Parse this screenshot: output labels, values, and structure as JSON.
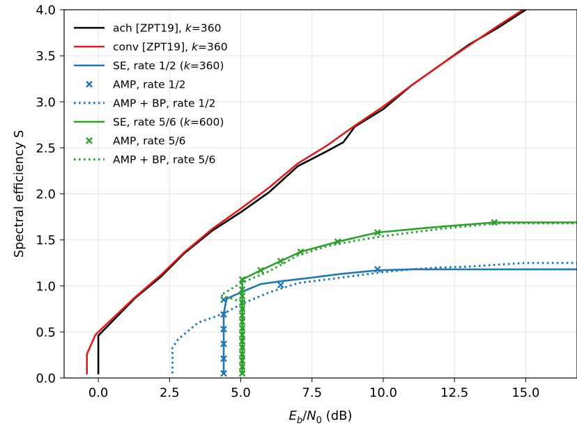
{
  "chart_data": {
    "type": "line",
    "xlabel": "E_b/N_0 (dB)",
    "ylabel": "Spectral efficiency S",
    "xlim": [
      -1.2,
      16.8
    ],
    "ylim": [
      0.0,
      4.0
    ],
    "xticks": [
      0.0,
      2.5,
      5.0,
      7.5,
      10.0,
      12.5,
      15.0
    ],
    "xtick_labels": [
      "0.0",
      "2.5",
      "5.0",
      "7.5",
      "10.0",
      "12.5",
      "15.0"
    ],
    "yticks": [
      0.0,
      0.5,
      1.0,
      1.5,
      2.0,
      2.5,
      3.0,
      3.5,
      4.0
    ],
    "ytick_labels": [
      "0.0",
      "0.5",
      "1.0",
      "1.5",
      "2.0",
      "2.5",
      "3.0",
      "3.5",
      "4.0"
    ],
    "grid": true,
    "legend_position": "top-left",
    "colors": {
      "black": "#000000",
      "red": "#e31a1c",
      "blue": "#1f77b4",
      "green": "#2ca02c"
    },
    "series": [
      {
        "name": "ach [ZPT19], k=360",
        "legend_label": "ach [ZPT19], k=360",
        "legend_parts": [
          {
            "t": "ach [ZPT19], "
          },
          {
            "t": "k",
            "i": true
          },
          {
            "t": "=360"
          }
        ],
        "style": "solid",
        "color": "#000000",
        "x": [
          0.0,
          0.0,
          1.3,
          2.2,
          3.0,
          4.0,
          5.0,
          6.0,
          7.0,
          8.0,
          8.6,
          9.0,
          10.0,
          11.0,
          12.0,
          13.0,
          14.0,
          15.0,
          16.8
        ],
        "y": [
          0.04,
          0.46,
          0.87,
          1.1,
          1.35,
          1.6,
          1.8,
          2.02,
          2.3,
          2.46,
          2.56,
          2.73,
          2.92,
          3.18,
          3.4,
          3.62,
          3.8,
          4.0,
          4.35
        ]
      },
      {
        "name": "conv [ZPT19], k=360",
        "legend_label": "conv [ZPT19], k=360",
        "legend_parts": [
          {
            "t": "conv [ZPT19], "
          },
          {
            "t": "k",
            "i": true
          },
          {
            "t": "=360"
          }
        ],
        "style": "solid",
        "color": "#e31a1c",
        "x": [
          -0.4,
          -0.4,
          -0.1,
          1.3,
          2.2,
          3.0,
          4.0,
          5.0,
          6.0,
          7.0,
          8.0,
          9.0,
          10.0,
          11.0,
          12.0,
          13.0,
          14.0,
          15.0,
          16.8
        ],
        "y": [
          0.04,
          0.26,
          0.47,
          0.88,
          1.12,
          1.36,
          1.62,
          1.84,
          2.07,
          2.33,
          2.52,
          2.74,
          2.95,
          3.18,
          3.4,
          3.61,
          3.82,
          4.02,
          4.37
        ]
      },
      {
        "name": "SE, rate 1/2 (k=360)",
        "legend_label": "SE, rate 1/2 (k=360)",
        "legend_parts": [
          {
            "t": "SE, rate 1/2 ("
          },
          {
            "t": "k",
            "i": true
          },
          {
            "t": "=360)"
          }
        ],
        "style": "solid",
        "color": "#1f77b4",
        "x": [
          4.4,
          4.4,
          4.5,
          5.0,
          5.7,
          6.4,
          7.5,
          8.5,
          9.8,
          11.0,
          16.8
        ],
        "y": [
          0.05,
          0.7,
          0.86,
          0.93,
          1.02,
          1.05,
          1.09,
          1.13,
          1.17,
          1.18,
          1.18
        ]
      },
      {
        "name": "AMP, rate 1/2",
        "legend_label": "AMP, rate 1/2",
        "legend_parts": [
          {
            "t": "AMP, rate 1/2"
          }
        ],
        "style": "markers",
        "color": "#1f77b4",
        "x": [
          4.4,
          4.4,
          4.4,
          4.4,
          4.4,
          4.4,
          6.4,
          9.8
        ],
        "y": [
          0.05,
          0.21,
          0.37,
          0.53,
          0.69,
          0.85,
          1.01,
          1.18
        ]
      },
      {
        "name": "AMP + BP, rate 1/2",
        "legend_label": "AMP + BP, rate 1/2",
        "legend_parts": [
          {
            "t": "AMP + BP, rate 1/2"
          }
        ],
        "style": "dotted",
        "color": "#1f77b4",
        "x": [
          2.6,
          2.6,
          2.8,
          3.5,
          4.4,
          5.0,
          6.0,
          7.0,
          8.0,
          9.0,
          10.0,
          11.0,
          12.0,
          13.0,
          14.0,
          15.0,
          16.8
        ],
        "y": [
          0.05,
          0.33,
          0.42,
          0.6,
          0.7,
          0.8,
          0.93,
          1.03,
          1.07,
          1.11,
          1.15,
          1.18,
          1.2,
          1.21,
          1.23,
          1.25,
          1.25
        ]
      },
      {
        "name": "SE, rate 5/6 (k=600)",
        "legend_label": "SE, rate 5/6 (k=600)",
        "legend_parts": [
          {
            "t": "SE, rate 5/6 ("
          },
          {
            "t": "k",
            "i": true
          },
          {
            "t": "=600)"
          }
        ],
        "style": "solid",
        "color": "#2ca02c",
        "x": [
          5.05,
          5.05,
          5.7,
          6.4,
          7.1,
          8.4,
          9.8,
          11.5,
          13.9,
          16.8
        ],
        "y": [
          0.05,
          1.07,
          1.17,
          1.27,
          1.37,
          1.48,
          1.58,
          1.63,
          1.69,
          1.69
        ]
      },
      {
        "name": "AMP, rate 5/6",
        "legend_label": "AMP, rate 5/6",
        "legend_parts": [
          {
            "t": "AMP, rate 5/6"
          }
        ],
        "style": "markers",
        "color": "#2ca02c",
        "x": [
          5.05,
          5.05,
          5.05,
          5.05,
          5.05,
          5.05,
          5.05,
          5.05,
          5.05,
          5.05,
          5.05,
          5.05,
          5.05,
          5.05,
          5.05,
          5.7,
          6.4,
          7.1,
          8.4,
          9.8,
          13.9
        ],
        "y": [
          0.05,
          0.12,
          0.19,
          0.26,
          0.33,
          0.4,
          0.47,
          0.54,
          0.61,
          0.68,
          0.75,
          0.82,
          0.89,
          0.96,
          1.07,
          1.17,
          1.27,
          1.37,
          1.48,
          1.58,
          1.69
        ]
      },
      {
        "name": "AMP + BP, rate 5/6",
        "legend_label": "AMP + BP, rate 5/6",
        "legend_parts": [
          {
            "t": "AMP + BP, rate 5/6"
          }
        ],
        "style": "dotted",
        "color": "#2ca02c",
        "x": [
          5.1,
          5.1,
          4.3,
          5.0,
          6.0,
          7.0,
          8.0,
          9.0,
          10.0,
          11.0,
          12.0,
          13.0,
          14.0,
          15.0,
          16.8
        ],
        "y": [
          0.05,
          0.82,
          0.9,
          1.03,
          1.16,
          1.33,
          1.43,
          1.49,
          1.54,
          1.58,
          1.62,
          1.65,
          1.68,
          1.68,
          1.68
        ]
      }
    ]
  }
}
